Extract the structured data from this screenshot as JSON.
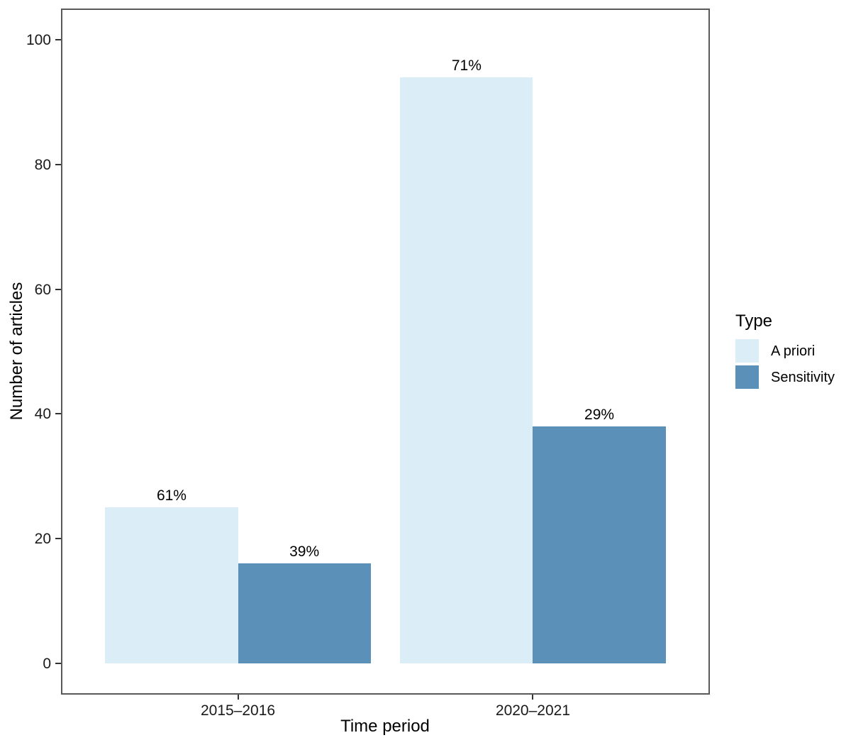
{
  "chart_data": {
    "type": "bar",
    "title": "",
    "xlabel": "Time period",
    "ylabel": "Number of articles",
    "categories": [
      "2015–2016",
      "2020–2021"
    ],
    "series": [
      {
        "name": "A priori",
        "color": "#DBEEF8",
        "values": [
          25,
          94
        ],
        "percent_labels": [
          "61%",
          "71%"
        ]
      },
      {
        "name": "Sensitivity",
        "color": "#5B90B8",
        "values": [
          16,
          38
        ],
        "percent_labels": [
          "39%",
          "29%"
        ]
      }
    ],
    "ylim": [
      0,
      100
    ],
    "yticks": [
      0,
      20,
      40,
      60,
      80,
      100
    ],
    "legend_title": "Type",
    "legend_position": "right",
    "grid": false,
    "bar_layout": "dodged"
  }
}
